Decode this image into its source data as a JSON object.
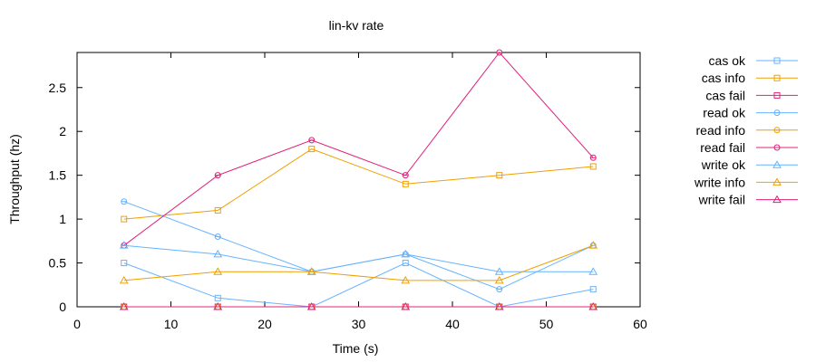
{
  "chart_data": {
    "type": "line",
    "title": "lin-kv rate",
    "xlabel": "Time (s)",
    "ylabel": "Throughput (hz)",
    "xlim": [
      0,
      60
    ],
    "ylim": [
      0,
      2.9
    ],
    "xticks": [
      0,
      10,
      20,
      30,
      40,
      50,
      60
    ],
    "yticks": [
      0,
      0.5,
      1,
      1.5,
      2,
      2.5
    ],
    "ytick_labels": [
      "0",
      "0.5",
      "1",
      "1.5",
      "2",
      "2.5"
    ],
    "grid": false,
    "legend_position": "outside-right",
    "x": [
      5,
      15,
      25,
      35,
      45,
      55
    ],
    "series": [
      {
        "name": "cas ok",
        "color": "#66b3ff",
        "marker": "square",
        "values": [
          0.5,
          0.1,
          0.0,
          0.5,
          0.0,
          0.2
        ]
      },
      {
        "name": "cas info",
        "color": "#f0a000",
        "marker": "square",
        "values": [
          1.0,
          1.1,
          1.8,
          1.4,
          1.5,
          1.6
        ]
      },
      {
        "name": "cas fail",
        "color": "#e0207a",
        "marker": "square",
        "values": [
          0,
          0,
          0,
          0,
          0,
          0
        ]
      },
      {
        "name": "read ok",
        "color": "#66b3ff",
        "marker": "circle",
        "values": [
          1.2,
          0.8,
          0.4,
          0.6,
          0.2,
          0.7
        ]
      },
      {
        "name": "read info",
        "color": "#f0a000",
        "marker": "circle",
        "values": [
          0,
          0,
          0,
          0,
          0,
          0
        ]
      },
      {
        "name": "read fail",
        "color": "#e0207a",
        "marker": "circle",
        "values": [
          0.7,
          1.5,
          1.9,
          1.5,
          2.9,
          1.7
        ]
      },
      {
        "name": "write ok",
        "color": "#66b3ff",
        "marker": "triangle",
        "values": [
          0.7,
          0.6,
          0.4,
          0.6,
          0.4,
          0.4
        ]
      },
      {
        "name": "write info",
        "color": "#f0a000",
        "marker": "triangle",
        "values": [
          0.3,
          0.4,
          0.4,
          0.3,
          0.3,
          0.7
        ]
      },
      {
        "name": "write fail",
        "color": "#e0207a",
        "marker": "triangle",
        "values": [
          0,
          0,
          0,
          0,
          0,
          0
        ]
      }
    ]
  }
}
